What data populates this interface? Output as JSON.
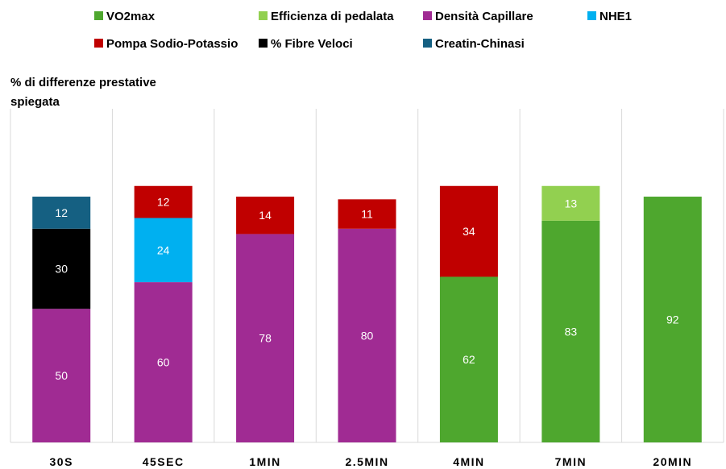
{
  "chart_data": {
    "type": "bar",
    "stacked": true,
    "ylabel": "% di differenze prestative spiegata",
    "ylim": [
      0,
      125
    ],
    "grid": "vertical category separators",
    "legend_position": "top",
    "categories": [
      "30S",
      "45SEC",
      "1MIN",
      "2.5MIN",
      "4MIN",
      "7MIN",
      "20MIN"
    ],
    "series": [
      {
        "name": "VO2max",
        "color": "#4EA72E",
        "values": [
          null,
          null,
          null,
          null,
          62,
          83,
          92
        ]
      },
      {
        "name": "Efficienza di pedalata",
        "color": "#92D050",
        "values": [
          null,
          null,
          null,
          null,
          null,
          13,
          null
        ]
      },
      {
        "name": "Densità Capillare",
        "color": "#A02B93",
        "values": [
          50,
          60,
          78,
          80,
          null,
          null,
          null
        ]
      },
      {
        "name": "NHE1",
        "color": "#00B0F0",
        "values": [
          null,
          24,
          null,
          null,
          null,
          null,
          null
        ]
      },
      {
        "name": "Pompa Sodio-Potassio",
        "color": "#C00000",
        "values": [
          null,
          12,
          14,
          11,
          34,
          null,
          null
        ]
      },
      {
        "name": "% Fibre Veloci",
        "color": "#000000",
        "values": [
          30,
          null,
          null,
          null,
          null,
          null,
          null
        ]
      },
      {
        "name": "Creatin-Chinasi",
        "color": "#156082",
        "values": [
          12,
          null,
          null,
          null,
          null,
          null,
          null
        ]
      }
    ]
  }
}
